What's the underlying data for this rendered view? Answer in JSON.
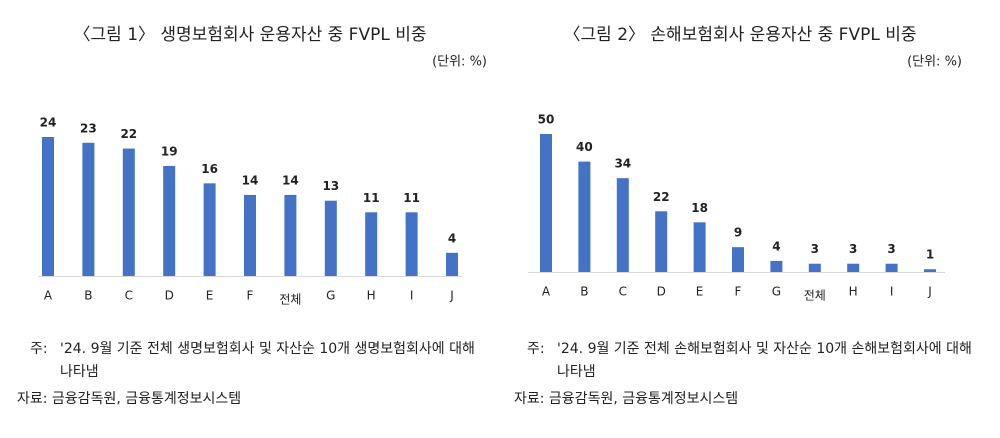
{
  "chart_data": [
    {
      "type": "bar",
      "title": "〈그림 1〉 생명보험회사 운용자산 중 FVPL 비중",
      "unit": "(단위: %)",
      "categories": [
        "A",
        "B",
        "C",
        "D",
        "E",
        "F",
        "전체",
        "G",
        "H",
        "I",
        "J"
      ],
      "values": [
        24,
        23,
        22,
        19,
        16,
        14,
        14,
        13,
        11,
        11,
        4
      ],
      "color": "#4472c4",
      "note_label": "주:",
      "note": "'24. 9월 기준 전체 생명보험회사 및 자산순 10개 생명보험회사에 대해 나타냄",
      "source": "자료: 금융감독원, 금융통계정보시스템"
    },
    {
      "type": "bar",
      "title": "〈그림 2〉 손해보험회사 운용자산 중 FVPL 비중",
      "unit": "(단위: %)",
      "categories": [
        "A",
        "B",
        "C",
        "D",
        "E",
        "F",
        "G",
        "전체",
        "H",
        "I",
        "J"
      ],
      "values": [
        50,
        40,
        34,
        22,
        18,
        9,
        4,
        3,
        3,
        3,
        1
      ],
      "color": "#4472c4",
      "note_label": "주:",
      "note": "'24. 9월 기준 전체 손해보험회사 및 자산순 10개 손해보험회사에 대해 나타냄",
      "source": "자료: 금융감독원, 금융통계정보시스템"
    }
  ]
}
